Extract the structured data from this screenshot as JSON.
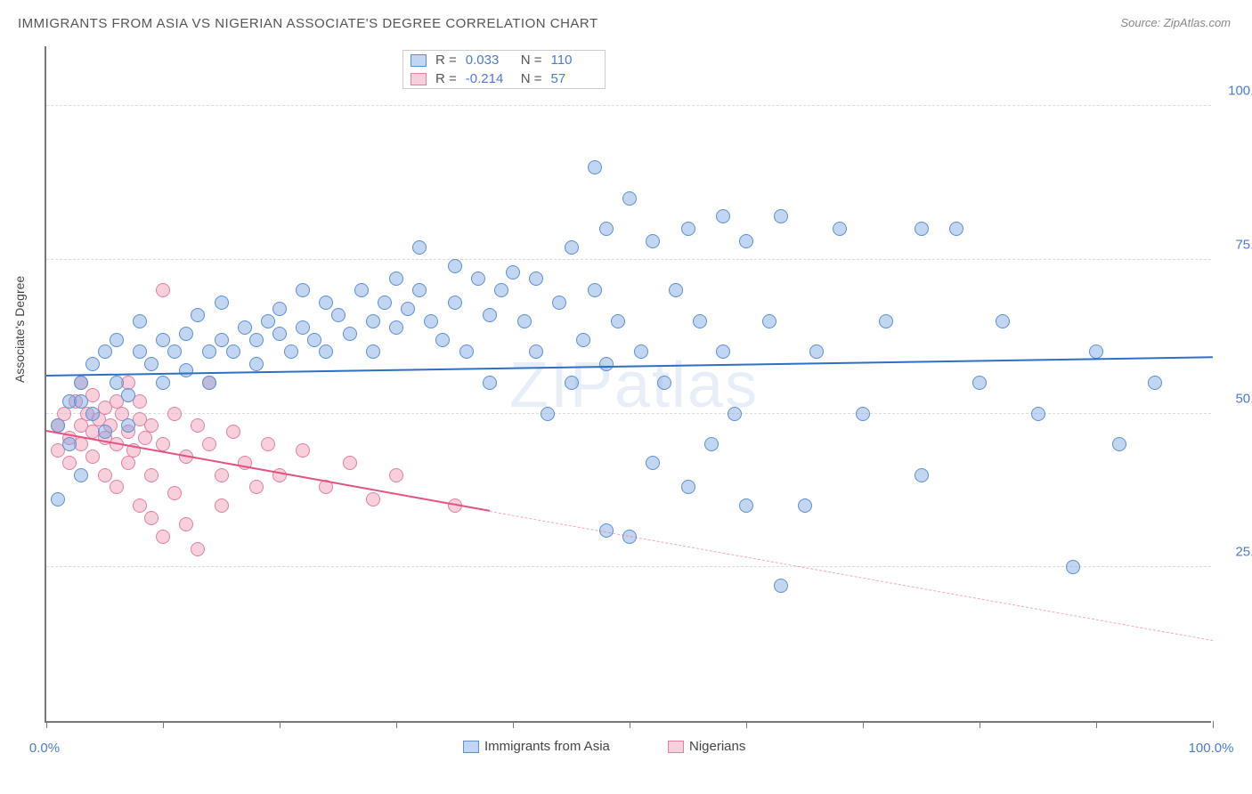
{
  "title": "IMMIGRANTS FROM ASIA VS NIGERIAN ASSOCIATE'S DEGREE CORRELATION CHART",
  "source": "Source: ZipAtlas.com",
  "ylabel": "Associate's Degree",
  "watermark": "ZIPatlas",
  "colors": {
    "blue_fill": "rgba(120,165,225,0.45)",
    "blue_stroke": "#5b8fd6",
    "pink_fill": "rgba(240,150,175,0.45)",
    "pink_stroke": "#e37fa0",
    "blue_line": "#2f6fc7",
    "pink_line": "#e4537e",
    "pink_dash": "rgba(228,83,126,0.5)",
    "tick_text": "#4a7bd0",
    "grid": "#dddddd"
  },
  "axes": {
    "xlim": [
      0,
      100
    ],
    "ylim": [
      0,
      110
    ],
    "yticks": [
      25,
      50,
      75,
      100
    ],
    "ytick_labels": [
      "25.0%",
      "50.0%",
      "75.0%",
      "100.0%"
    ],
    "xticks_minor": [
      0,
      10,
      20,
      30,
      40,
      50,
      60,
      70,
      80,
      90,
      100
    ],
    "xtick_labels": [
      {
        "x": 0,
        "label": "0.0%"
      },
      {
        "x": 100,
        "label": "100.0%"
      }
    ]
  },
  "stats": {
    "rows": [
      {
        "swatch": "blue",
        "r_label": "R =",
        "r": "0.033",
        "n_label": "N =",
        "n": "110"
      },
      {
        "swatch": "pink",
        "r_label": "R =",
        "r": "-0.214",
        "n_label": "N =",
        "n": "57"
      }
    ]
  },
  "legend": [
    {
      "swatch": "blue",
      "label": "Immigrants from Asia"
    },
    {
      "swatch": "pink",
      "label": "Nigerians"
    }
  ],
  "trend_lines": {
    "blue": {
      "x1": 0,
      "y1": 56,
      "x2": 100,
      "y2": 59
    },
    "pink_solid": {
      "x1": 0,
      "y1": 47,
      "x2": 38,
      "y2": 34
    },
    "pink_dash": {
      "x1": 38,
      "y1": 34,
      "x2": 100,
      "y2": 13
    }
  },
  "series": {
    "blue": [
      [
        1,
        36
      ],
      [
        1,
        48
      ],
      [
        2,
        52
      ],
      [
        2,
        45
      ],
      [
        3,
        40
      ],
      [
        3,
        55
      ],
      [
        4,
        50
      ],
      [
        4,
        58
      ],
      [
        5,
        47
      ],
      [
        5,
        60
      ],
      [
        6,
        55
      ],
      [
        6,
        62
      ],
      [
        7,
        53
      ],
      [
        7,
        48
      ],
      [
        8,
        60
      ],
      [
        8,
        65
      ],
      [
        9,
        58
      ],
      [
        10,
        55
      ],
      [
        10,
        62
      ],
      [
        11,
        60
      ],
      [
        12,
        57
      ],
      [
        12,
        63
      ],
      [
        13,
        66
      ],
      [
        14,
        60
      ],
      [
        14,
        55
      ],
      [
        15,
        62
      ],
      [
        15,
        68
      ],
      [
        16,
        60
      ],
      [
        17,
        64
      ],
      [
        18,
        62
      ],
      [
        18,
        58
      ],
      [
        19,
        65
      ],
      [
        20,
        63
      ],
      [
        20,
        67
      ],
      [
        21,
        60
      ],
      [
        22,
        64
      ],
      [
        22,
        70
      ],
      [
        23,
        62
      ],
      [
        24,
        68
      ],
      [
        24,
        60
      ],
      [
        25,
        66
      ],
      [
        26,
        63
      ],
      [
        27,
        70
      ],
      [
        28,
        65
      ],
      [
        28,
        60
      ],
      [
        29,
        68
      ],
      [
        30,
        72
      ],
      [
        30,
        64
      ],
      [
        31,
        67
      ],
      [
        32,
        70
      ],
      [
        32,
        77
      ],
      [
        33,
        65
      ],
      [
        34,
        62
      ],
      [
        35,
        68
      ],
      [
        35,
        74
      ],
      [
        36,
        60
      ],
      [
        37,
        72
      ],
      [
        38,
        66
      ],
      [
        38,
        55
      ],
      [
        39,
        70
      ],
      [
        40,
        73
      ],
      [
        41,
        65
      ],
      [
        42,
        60
      ],
      [
        42,
        72
      ],
      [
        43,
        50
      ],
      [
        44,
        68
      ],
      [
        45,
        55
      ],
      [
        45,
        77
      ],
      [
        46,
        62
      ],
      [
        47,
        90
      ],
      [
        47,
        70
      ],
      [
        48,
        31
      ],
      [
        48,
        58
      ],
      [
        49,
        65
      ],
      [
        50,
        85
      ],
      [
        50,
        30
      ],
      [
        51,
        60
      ],
      [
        52,
        78
      ],
      [
        52,
        42
      ],
      [
        53,
        55
      ],
      [
        54,
        70
      ],
      [
        55,
        80
      ],
      [
        55,
        38
      ],
      [
        56,
        65
      ],
      [
        57,
        45
      ],
      [
        58,
        82
      ],
      [
        58,
        60
      ],
      [
        59,
        50
      ],
      [
        60,
        78
      ],
      [
        60,
        35
      ],
      [
        62,
        65
      ],
      [
        63,
        82
      ],
      [
        63,
        22
      ],
      [
        65,
        35
      ],
      [
        66,
        60
      ],
      [
        68,
        80
      ],
      [
        70,
        50
      ],
      [
        72,
        65
      ],
      [
        75,
        40
      ],
      [
        78,
        80
      ],
      [
        80,
        55
      ],
      [
        82,
        65
      ],
      [
        85,
        50
      ],
      [
        88,
        25
      ],
      [
        90,
        60
      ],
      [
        92,
        45
      ],
      [
        95,
        55
      ],
      [
        75,
        80
      ],
      [
        48,
        80
      ],
      [
        3,
        52
      ]
    ],
    "pink": [
      [
        1,
        48
      ],
      [
        1,
        44
      ],
      [
        1.5,
        50
      ],
      [
        2,
        46
      ],
      [
        2,
        42
      ],
      [
        2.5,
        52
      ],
      [
        3,
        48
      ],
      [
        3,
        45
      ],
      [
        3,
        55
      ],
      [
        3.5,
        50
      ],
      [
        4,
        47
      ],
      [
        4,
        43
      ],
      [
        4,
        53
      ],
      [
        4.5,
        49
      ],
      [
        5,
        46
      ],
      [
        5,
        51
      ],
      [
        5,
        40
      ],
      [
        5.5,
        48
      ],
      [
        6,
        52
      ],
      [
        6,
        45
      ],
      [
        6,
        38
      ],
      [
        6.5,
        50
      ],
      [
        7,
        47
      ],
      [
        7,
        42
      ],
      [
        7,
        55
      ],
      [
        7.5,
        44
      ],
      [
        8,
        49
      ],
      [
        8,
        35
      ],
      [
        8,
        52
      ],
      [
        8.5,
        46
      ],
      [
        9,
        33
      ],
      [
        9,
        48
      ],
      [
        9,
        40
      ],
      [
        10,
        45
      ],
      [
        10,
        70
      ],
      [
        10,
        30
      ],
      [
        11,
        37
      ],
      [
        11,
        50
      ],
      [
        12,
        43
      ],
      [
        12,
        32
      ],
      [
        13,
        48
      ],
      [
        13,
        28
      ],
      [
        14,
        45
      ],
      [
        14,
        55
      ],
      [
        15,
        40
      ],
      [
        15,
        35
      ],
      [
        16,
        47
      ],
      [
        17,
        42
      ],
      [
        18,
        38
      ],
      [
        19,
        45
      ],
      [
        20,
        40
      ],
      [
        22,
        44
      ],
      [
        24,
        38
      ],
      [
        26,
        42
      ],
      [
        28,
        36
      ],
      [
        30,
        40
      ],
      [
        35,
        35
      ]
    ]
  }
}
